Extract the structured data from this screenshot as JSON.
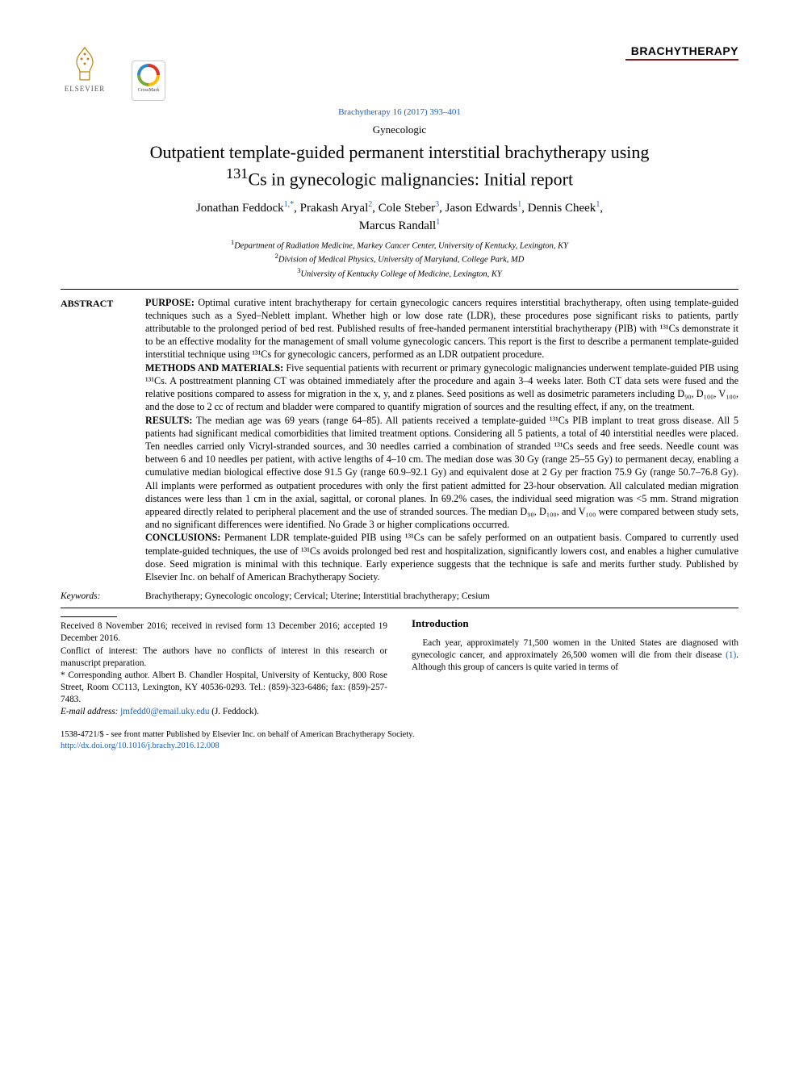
{
  "header": {
    "elsevier_label": "ELSEVIER",
    "crossmark_label": "CrossMark",
    "journal_name": "BRACHYTHERAPY",
    "journal_color": "#7b1113",
    "citation": "Brachytherapy 16 (2017) 393–401"
  },
  "article": {
    "category": "Gynecologic",
    "title_line1": "Outpatient template-guided permanent interstitial brachytherapy using",
    "title_line2_pre": "",
    "title_isotope_sup": "131",
    "title_isotope": "Cs in gynecologic malignancies: Initial report",
    "authors_html_parts": [
      {
        "name": "Jonathan Feddock",
        "sup": "1,*",
        "link": true
      },
      {
        "name": "Prakash Aryal",
        "sup": "2",
        "link": true
      },
      {
        "name": "Cole Steber",
        "sup": "3",
        "link": true
      },
      {
        "name": "Jason Edwards",
        "sup": "1",
        "link": true
      },
      {
        "name": "Dennis Cheek",
        "sup": "1",
        "link": true
      },
      {
        "name": "Marcus Randall",
        "sup": "1",
        "link": true
      }
    ],
    "affiliations": [
      {
        "sup": "1",
        "text": "Department of Radiation Medicine, Markey Cancer Center, University of Kentucky, Lexington, KY"
      },
      {
        "sup": "2",
        "text": "Division of Medical Physics, University of Maryland, College Park, MD"
      },
      {
        "sup": "3",
        "text": "University of Kentucky College of Medicine, Lexington, KY"
      }
    ]
  },
  "abstract": {
    "label": "ABSTRACT",
    "sections": {
      "purpose_label": "PURPOSE:",
      "purpose": " Optimal curative intent brachytherapy for certain gynecologic cancers requires interstitial brachytherapy, often using template-guided techniques such as a Syed–Neblett implant. Whether high or low dose rate (LDR), these procedures pose significant risks to patients, partly attributable to the prolonged period of bed rest. Published results of free-handed permanent interstitial brachytherapy (PIB) with ¹³¹Cs demonstrate it to be an effective modality for the management of small volume gynecologic cancers. This report is the first to describe a permanent template-guided interstitial technique using ¹³¹Cs for gynecologic cancers, performed as an LDR outpatient procedure.",
      "methods_label": "METHODS AND MATERIALS:",
      "methods": " Five sequential patients with recurrent or primary gynecologic malignancies underwent template-guided PIB using ¹³¹Cs. A posttreatment planning CT was obtained immediately after the procedure and again 3–4 weeks later. Both CT data sets were fused and the relative positions compared to assess for migration in the x, y, and z planes. Seed positions as well as dosimetric parameters including D₉₀, D₁₀₀, V₁₀₀, and the dose to 2 cc of rectum and bladder were compared to quantify migration of sources and the resulting effect, if any, on the treatment.",
      "results_label": "RESULTS:",
      "results": " The median age was 69 years (range 64–85). All patients received a template-guided ¹³¹Cs PIB implant to treat gross disease. All 5 patients had significant medical comorbidities that limited treatment options. Considering all 5 patients, a total of 40 interstitial needles were placed. Ten needles carried only Vicryl-stranded sources, and 30 needles carried a combination of stranded ¹³¹Cs seeds and free seeds. Needle count was between 6 and 10 needles per patient, with active lengths of 4–10 cm. The median dose was 30 Gy (range 25–55 Gy) to permanent decay, enabling a cumulative median biological effective dose 91.5 Gy (range 60.9–92.1 Gy) and equivalent dose at 2 Gy per fraction 75.9 Gy (range 50.7–76.8 Gy). All implants were performed as outpatient procedures with only the first patient admitted for 23-hour observation. All calculated median migration distances were less than 1 cm in the axial, sagittal, or coronal planes. In 69.2% cases, the individual seed migration was <5 mm. Strand migration appeared directly related to peripheral placement and the use of stranded sources. The median D₉₀, D₁₀₀, and V₁₀₀ were compared between study sets, and no significant differences were identified. No Grade 3 or higher complications occurred.",
      "conclusions_label": "CONCLUSIONS:",
      "conclusions": " Permanent LDR template-guided PIB using ¹³¹Cs can be safely performed on an outpatient basis. Compared to currently used template-guided techniques, the use of ¹³¹Cs avoids prolonged bed rest and hospitalization, significantly lowers cost, and enables a higher cumulative dose. Seed migration is minimal with this technique. Early experience suggests that the technique is safe and merits further study. Published by Elsevier Inc. on behalf of American Brachytherapy Society."
    }
  },
  "keywords": {
    "label": "Keywords:",
    "text": "Brachytherapy; Gynecologic oncology; Cervical; Uterine; Interstitial brachytherapy; Cesium"
  },
  "footnotes": {
    "received": "Received 8 November 2016; received in revised form 13 December 2016; accepted 19 December 2016.",
    "conflict": "Conflict of interest: The authors have no conflicts of interest in this research or manuscript preparation.",
    "corresponding": "* Corresponding author. Albert B. Chandler Hospital, University of Kentucky, 800 Rose Street, Room CC113, Lexington, KY 40536-0293. Tel.: (859)-323-6486; fax: (859)-257-7483.",
    "email_label": "E-mail address:",
    "email": "jmfedd0@email.uky.edu",
    "email_suffix": " (J. Feddock)."
  },
  "introduction": {
    "heading": "Introduction",
    "para": "Each year, approximately 71,500 women in the United States are diagnosed with gynecologic cancer, and approximately 26,500 women will die from their disease ",
    "ref": "(1)",
    "para_cont": ". Although this group of cancers is quite varied in terms of"
  },
  "footer": {
    "copyright": "1538-4721/$ - see front matter Published by Elsevier Inc. on behalf of American Brachytherapy Society.",
    "doi": "http://dx.doi.org/10.1016/j.brachy.2016.12.008"
  },
  "colors": {
    "link": "#1a5fbf",
    "text": "#000000",
    "maroon": "#7b1113"
  }
}
